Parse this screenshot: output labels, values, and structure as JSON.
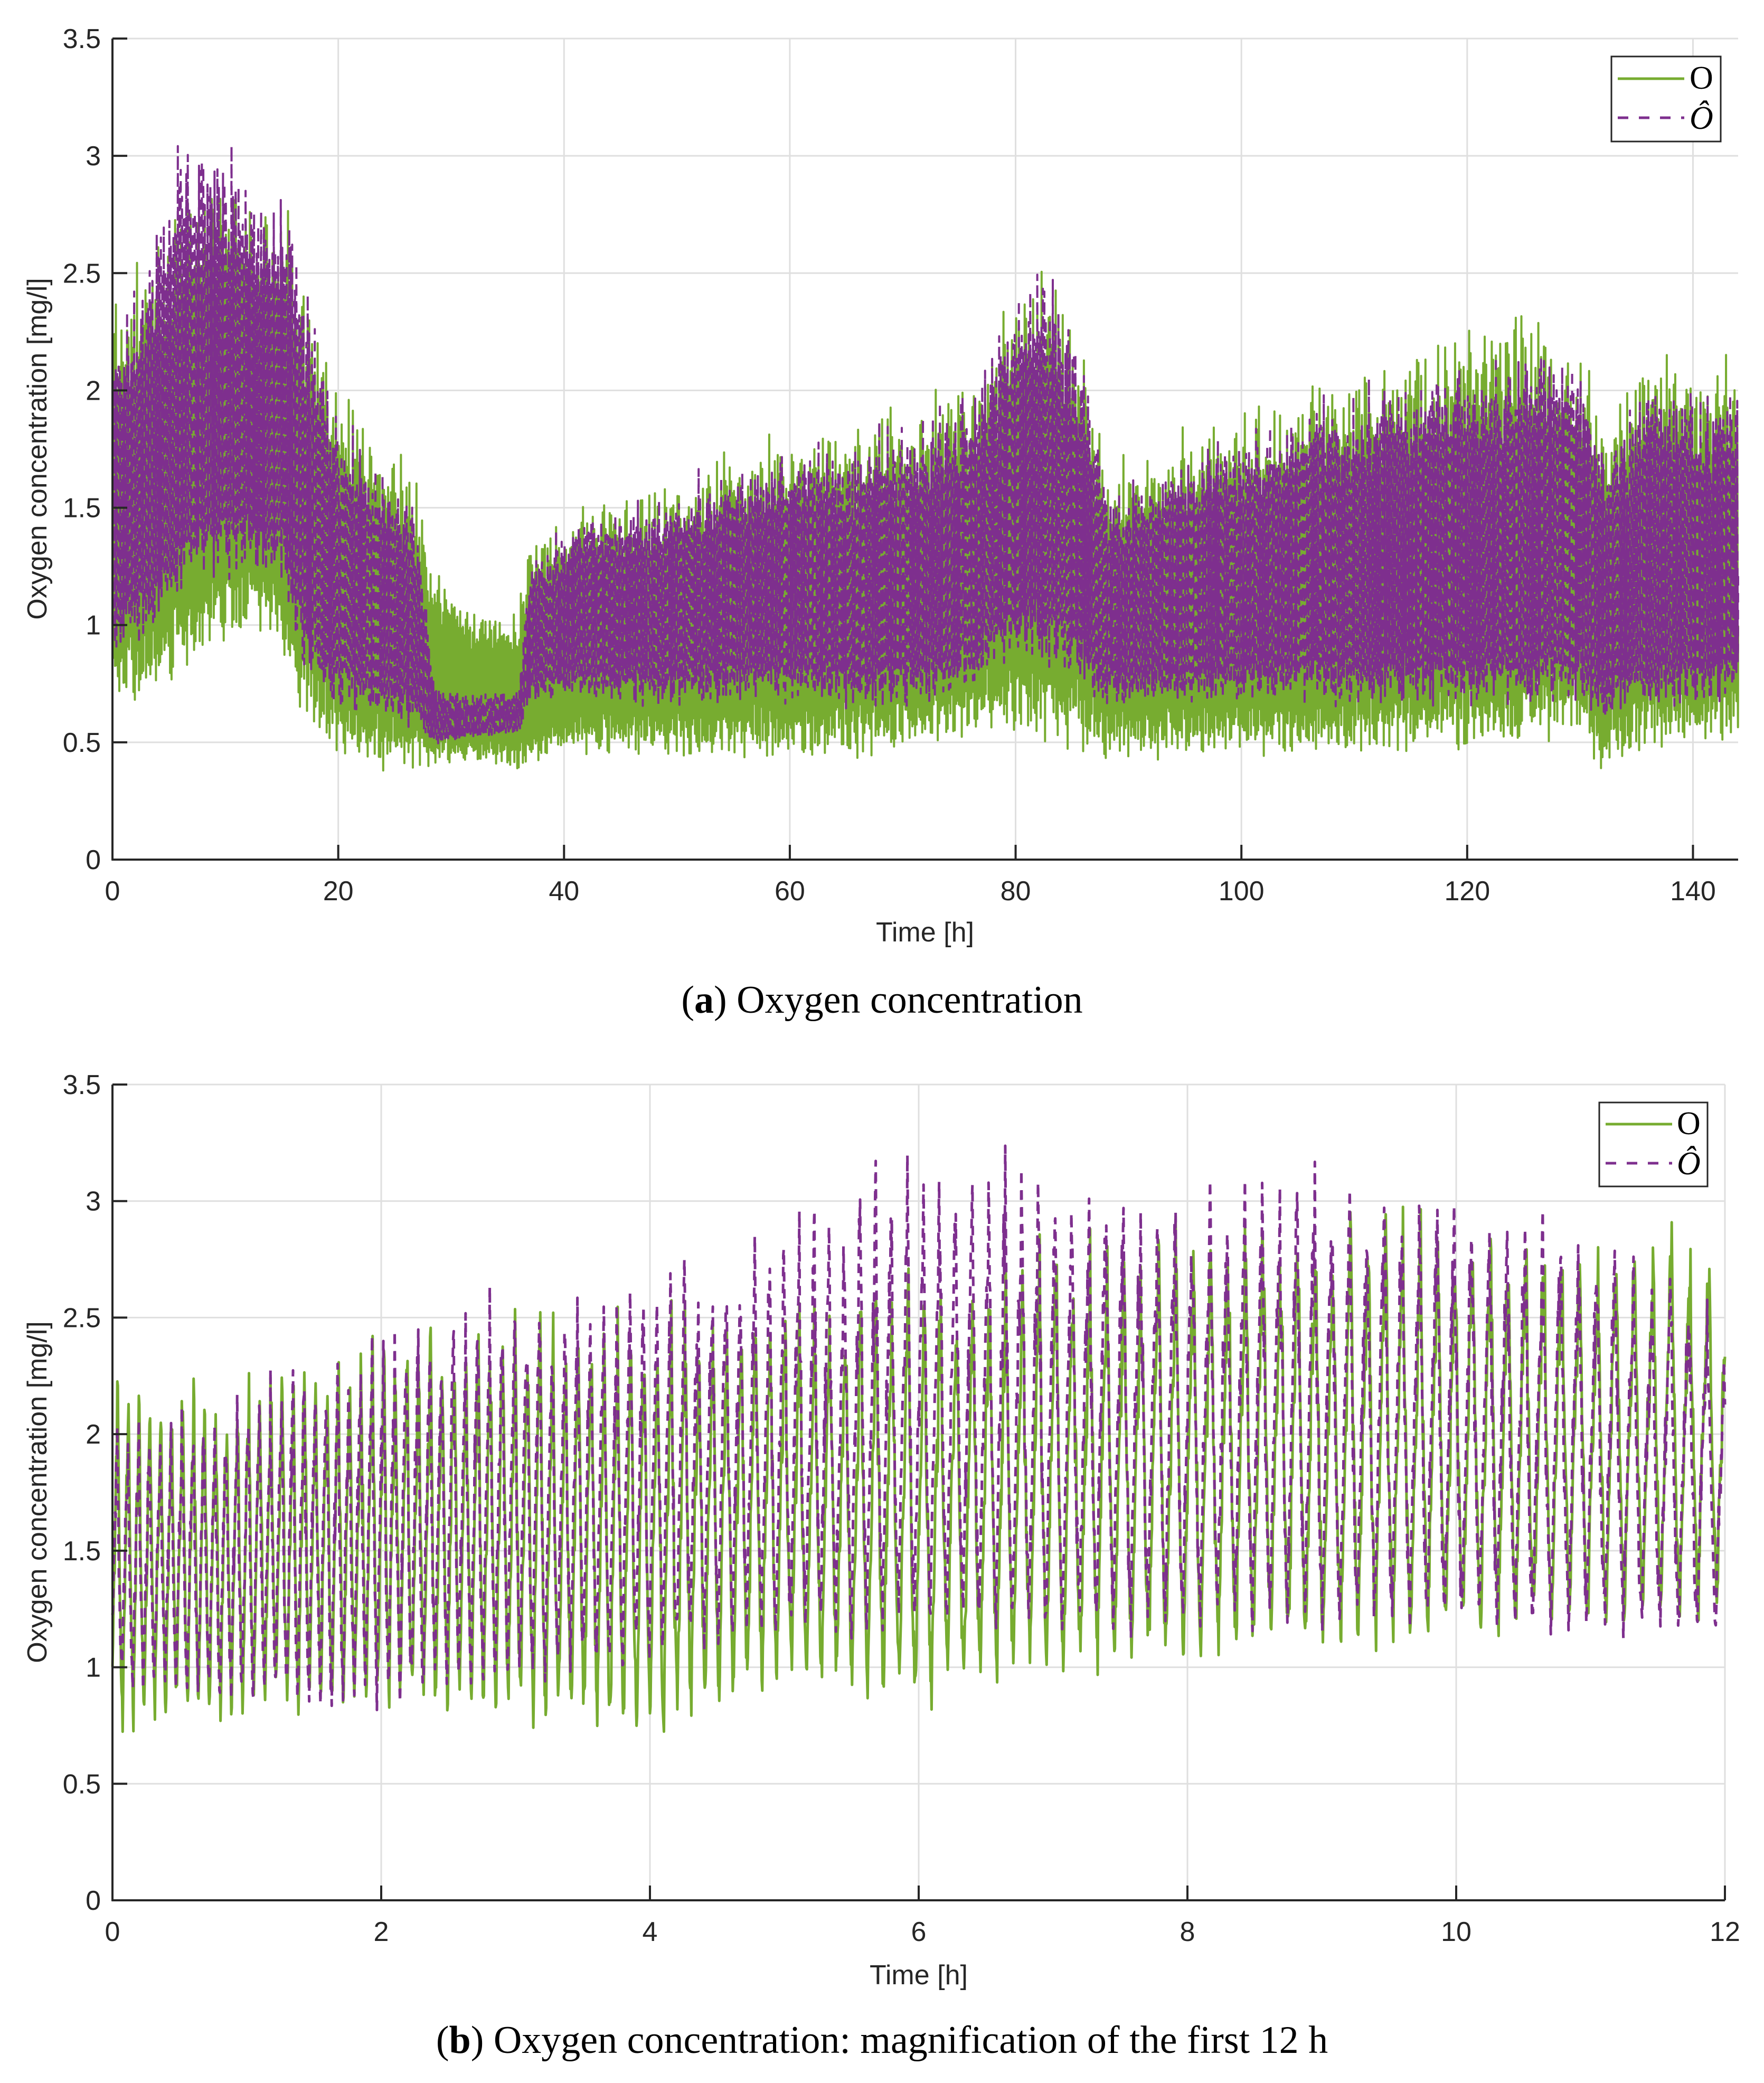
{
  "figure_a": {
    "caption_letter": "a",
    "caption_text": "Oxygen concentration",
    "xlabel": "Time [h]",
    "ylabel": "Oxygen concentration [mg/l]",
    "legend": {
      "measured": "O",
      "estimated": "Ô"
    }
  },
  "figure_b": {
    "caption_letter": "b",
    "caption_text": "Oxygen concentration: magnification of the first 12 h",
    "xlabel": "Time [h]",
    "ylabel": "Oxygen concentration [mg/l]",
    "legend": {
      "measured": "O",
      "estimated": "Ô"
    }
  },
  "colors": {
    "measured": "#77AC30",
    "estimated": "#7E2F8E",
    "grid": "#dfdfdf",
    "axis": "#262626"
  },
  "chart_data": [
    {
      "type": "line",
      "title": "(a) Oxygen concentration",
      "xlabel": "Time [h]",
      "ylabel": "Oxygen concentration [mg/l]",
      "xlim": [
        0,
        144
      ],
      "ylim": [
        0,
        3.5
      ],
      "xticks": [
        0,
        20,
        40,
        60,
        80,
        100,
        120,
        140
      ],
      "yticks": [
        0,
        0.5,
        1,
        1.5,
        2,
        2.5,
        3,
        3.5
      ],
      "grid": true,
      "legend_position": "upper right",
      "period_h": 0.125,
      "series": [
        {
          "name": "O",
          "style": "solid",
          "envelope": {
            "t": [
              0,
              3,
              6,
              9,
              12,
              15,
              17,
              20,
              24,
              27,
              28.5,
              31,
              36,
              37,
              42,
              48,
              55,
              60,
              66,
              72,
              76,
              80,
              83,
              86,
              88,
              92,
              98,
              104,
              110,
              116,
              122,
              128,
              130,
              132,
              136,
              140,
              144
            ],
            "upper": [
              2.4,
              2.55,
              2.8,
              2.95,
              2.9,
              2.8,
              2.55,
              2.1,
              1.75,
              1.6,
              1.25,
              1.1,
              1.05,
              1.4,
              1.55,
              1.6,
              1.75,
              1.85,
              1.9,
              1.95,
              2.1,
              2.5,
              2.6,
              2.2,
              1.7,
              1.75,
              1.9,
              2.0,
              2.1,
              2.2,
              2.3,
              2.3,
              2.2,
              1.95,
              2.15,
              2.2,
              2.1
            ],
            "lower": [
              0.8,
              0.75,
              0.9,
              1.0,
              1.05,
              1.0,
              0.7,
              0.5,
              0.45,
              0.45,
              0.45,
              0.45,
              0.42,
              0.45,
              0.5,
              0.5,
              0.5,
              0.5,
              0.5,
              0.55,
              0.6,
              0.65,
              0.6,
              0.55,
              0.5,
              0.5,
              0.5,
              0.52,
              0.52,
              0.55,
              0.55,
              0.6,
              0.6,
              0.45,
              0.55,
              0.55,
              0.6
            ]
          }
        },
        {
          "name": "Ô",
          "style": "dashed",
          "envelope": {
            "t": [
              0,
              3,
              6,
              9,
              12,
              15,
              17,
              20,
              24,
              27,
              28.5,
              31,
              36,
              37,
              42,
              48,
              55,
              60,
              66,
              72,
              76,
              80,
              83,
              86,
              88,
              92,
              98,
              104,
              110,
              116,
              122,
              128,
              130,
              132,
              136,
              140,
              144
            ],
            "upper": [
              2.2,
              2.5,
              3.15,
              3.1,
              2.95,
              2.9,
              2.5,
              1.9,
              1.65,
              1.5,
              0.75,
              0.7,
              0.72,
              1.3,
              1.5,
              1.55,
              1.7,
              1.75,
              1.8,
              1.9,
              2.0,
              2.45,
              2.55,
              2.2,
              1.6,
              1.65,
              1.8,
              1.9,
              2.0,
              2.1,
              2.15,
              2.25,
              2.15,
              1.8,
              2.0,
              2.05,
              2.0
            ],
            "lower": [
              0.95,
              1.0,
              1.2,
              1.3,
              1.3,
              1.25,
              0.9,
              0.7,
              0.65,
              0.6,
              0.5,
              0.52,
              0.55,
              0.7,
              0.72,
              0.7,
              0.72,
              0.72,
              0.7,
              0.72,
              0.8,
              0.95,
              0.9,
              0.8,
              0.7,
              0.72,
              0.72,
              0.72,
              0.72,
              0.72,
              0.72,
              0.75,
              0.75,
              0.65,
              0.72,
              0.72,
              0.75
            ]
          }
        }
      ]
    },
    {
      "type": "line",
      "title": "(b) Oxygen concentration: magnification of the first 12 h",
      "xlabel": "Time [h]",
      "ylabel": "Oxygen concentration [mg/l]",
      "xlim": [
        0,
        12
      ],
      "ylim": [
        0,
        3.5
      ],
      "xticks": [
        0,
        2,
        4,
        6,
        8,
        10,
        12
      ],
      "yticks": [
        0,
        0.5,
        1,
        1.5,
        2,
        2.5,
        3,
        3.5
      ],
      "grid": true,
      "legend_position": "upper right",
      "cycle_period_h": {
        "t": [
          0,
          2,
          4,
          6,
          8,
          10,
          12
        ],
        "value": [
          0.08,
          0.085,
          0.1,
          0.12,
          0.13,
          0.13,
          0.14
        ]
      },
      "series": [
        {
          "name": "O",
          "style": "solid",
          "envelope": {
            "t": [
              0,
              1,
              2,
              3,
              4,
              5,
              6,
              7,
              8,
              9,
              10,
              11,
              12
            ],
            "upper": [
              2.3,
              2.3,
              2.45,
              2.55,
              2.6,
              2.65,
              2.7,
              2.85,
              2.95,
              3.0,
              2.95,
              2.9,
              2.9
            ],
            "lower": [
              0.8,
              0.85,
              0.9,
              0.85,
              0.75,
              1.0,
              0.9,
              1.05,
              1.1,
              1.15,
              1.2,
              1.25,
              1.3
            ]
          }
        },
        {
          "name": "Ô",
          "style": "dashed",
          "envelope": {
            "t": [
              0,
              1,
              2,
              3,
              4,
              5,
              6,
              7,
              8,
              9,
              10,
              11,
              12
            ],
            "upper": [
              2.05,
              2.2,
              2.5,
              2.6,
              2.7,
              2.9,
              3.2,
              3.15,
              3.1,
              3.15,
              3.05,
              2.95,
              2.6
            ],
            "lower": [
              0.95,
              0.9,
              0.9,
              1.0,
              1.1,
              1.2,
              1.25,
              1.2,
              1.25,
              1.25,
              1.25,
              1.2,
              1.2
            ]
          }
        }
      ]
    }
  ]
}
